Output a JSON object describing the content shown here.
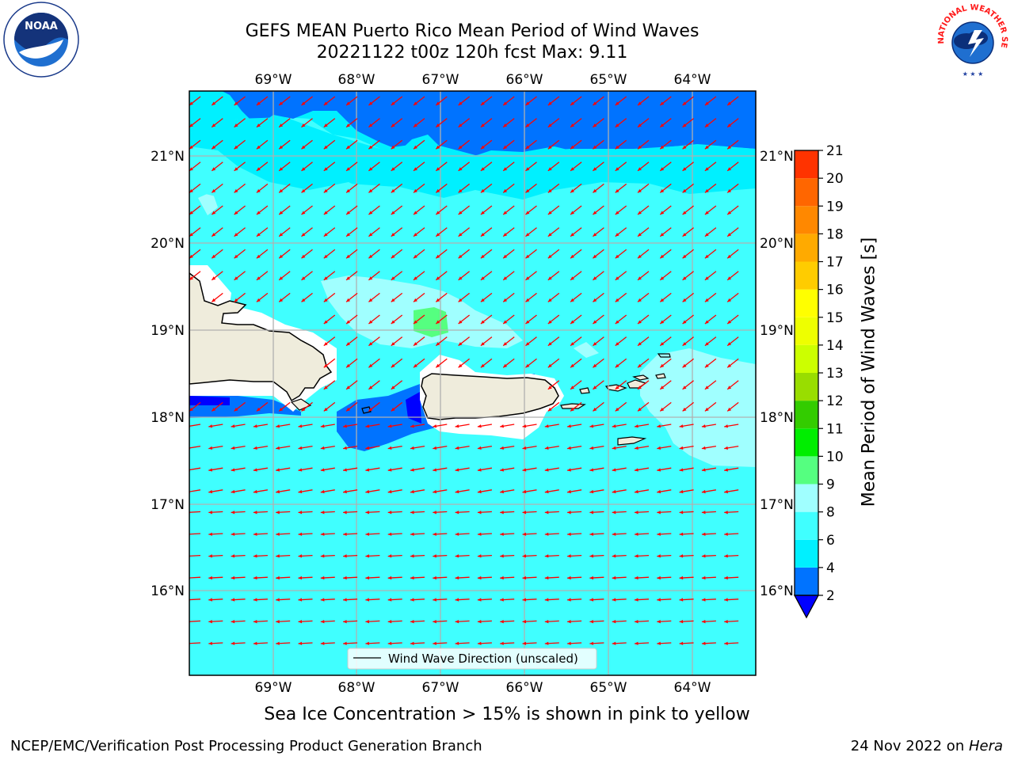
{
  "header": {
    "title_line1": "GEFS MEAN Puerto Rico Mean Period of Wind Waves",
    "title_line2": "20221122 t00z 120h fcst   Max: 9.11"
  },
  "logos": {
    "left": {
      "name": "NOAA",
      "ring_text": "NATIONAL OCEANIC AND ATMOSPHERIC ADMINISTRATION · U.S. DEPARTMENT OF COMMERCE"
    },
    "right": {
      "name": "NATIONAL WEATHER SERVICE"
    }
  },
  "map": {
    "region": "Puerto Rico",
    "lon_labels": [
      "69°W",
      "68°W",
      "67°W",
      "66°W",
      "65°W",
      "64°W"
    ],
    "lat_labels": [
      "21°N",
      "20°N",
      "19°N",
      "18°N",
      "17°N",
      "16°N"
    ],
    "legend": "Wind Wave Direction (unscaled)",
    "arrow_color": "#ff0000",
    "land_color": "#efecdc",
    "gridline_color": "#b0b0b0"
  },
  "colorbar": {
    "label": "Mean Period of Wind Waves [s]",
    "ticks": [
      "2",
      "4",
      "6",
      "8",
      "9",
      "10",
      "11",
      "12",
      "13",
      "14",
      "15",
      "16",
      "17",
      "18",
      "19",
      "20",
      "21"
    ],
    "colors": [
      "#0073ff",
      "#00f0ff",
      "#40ffff",
      "#a0ffff",
      "#55ff80",
      "#00ee00",
      "#33cc00",
      "#99dd00",
      "#ccff00",
      "#eeff00",
      "#ffff00",
      "#ffcc00",
      "#ffaa00",
      "#ff8800",
      "#ff6600",
      "#ff3300"
    ],
    "extend_color": "#0000ff"
  },
  "chart_data": {
    "type": "heatmap",
    "title": "GEFS MEAN Puerto Rico Mean Period of Wind Waves",
    "subtitle": "20221122 t00z 120h fcst   Max: 9.11",
    "ylabel": "Mean Period of Wind Waves [s]",
    "levels": [
      2,
      4,
      6,
      8,
      9,
      10,
      11,
      12,
      13,
      14,
      15,
      16,
      17,
      18,
      19,
      20,
      21
    ],
    "max": 9.11
  },
  "footer": {
    "note": "Sea Ice Concentration > 15% is shown in pink to yellow",
    "left": "NCEP/EMC/Verification Post Processing Product Generation Branch",
    "right_prefix": "24 Nov 2022 on ",
    "right_machine": "Hera"
  }
}
